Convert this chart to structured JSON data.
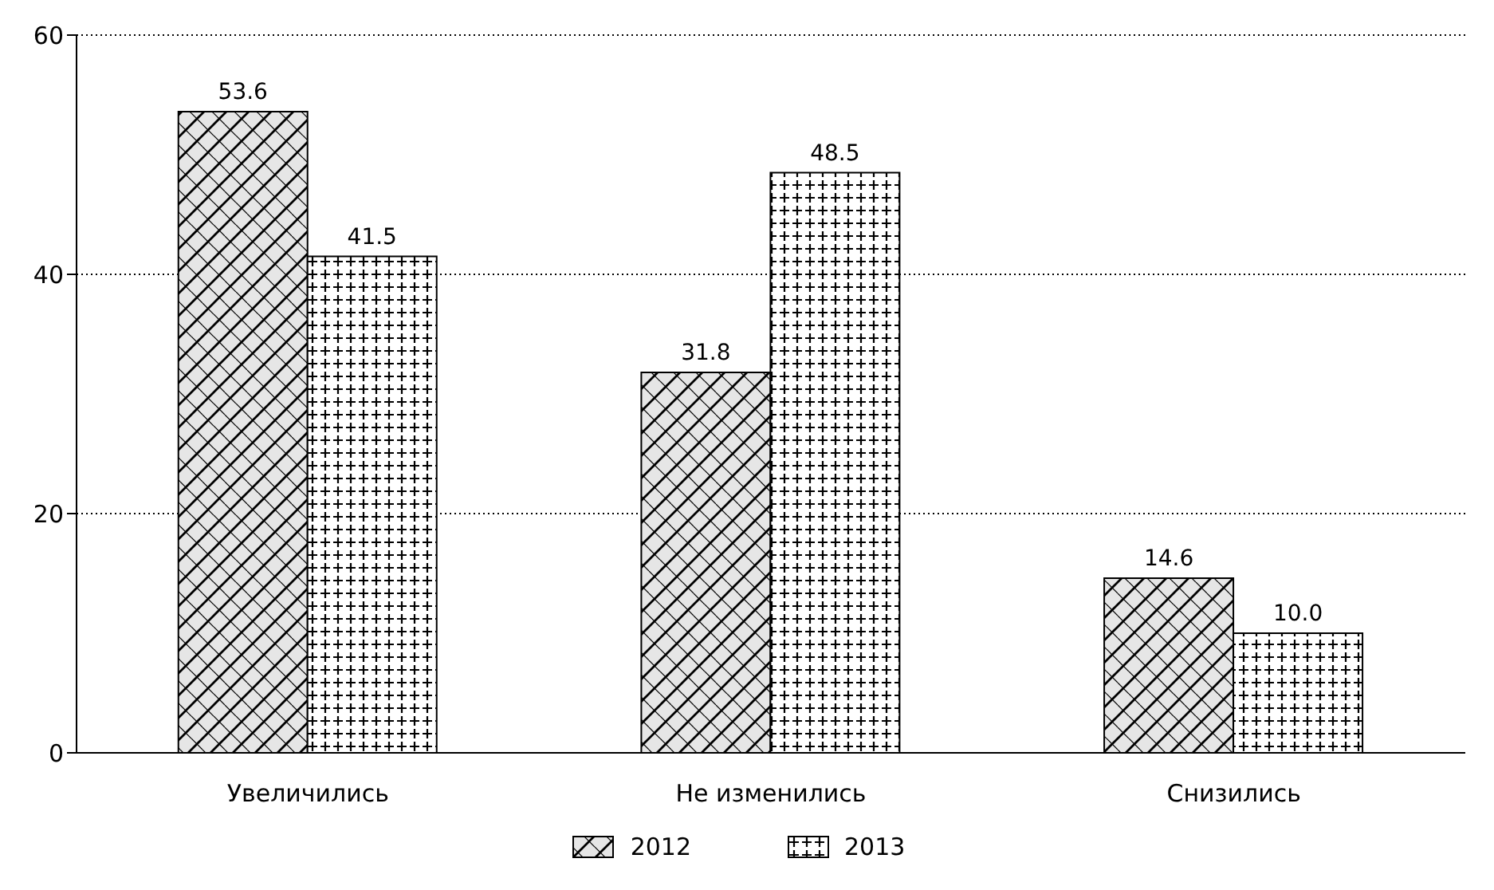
{
  "chart_data": {
    "type": "bar",
    "categories": [
      "Увеличились",
      "Не изменились",
      "Снизились"
    ],
    "series": [
      {
        "name": "2012",
        "color": "#000000",
        "values": [
          53.6,
          31.8,
          14.6
        ],
        "value_labels": [
          "53.6",
          "31.8",
          "14.6"
        ]
      },
      {
        "name": "2013",
        "color": "#000000",
        "values": [
          41.5,
          48.5,
          10.0
        ],
        "value_labels": [
          "41.5",
          "48.5",
          "10.0"
        ]
      }
    ],
    "ylim": [
      0,
      60
    ],
    "yticks": [
      0,
      20,
      40,
      60
    ],
    "grid": "y",
    "legend": "bottom"
  }
}
